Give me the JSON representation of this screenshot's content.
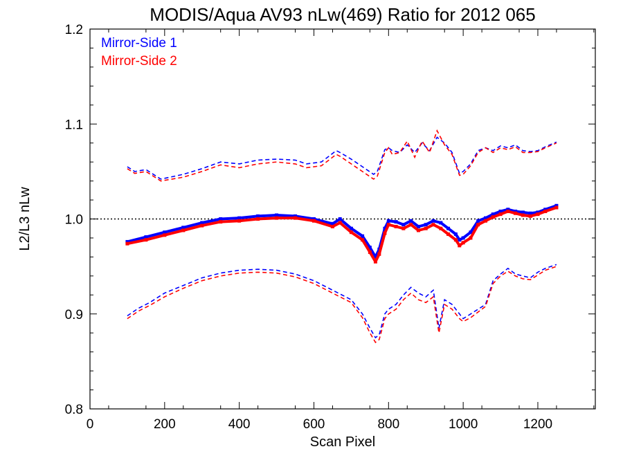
{
  "chart_data": {
    "type": "line",
    "title": "MODIS/Aqua AV93 nLw(469) Ratio for 2012 065",
    "xlabel": "Scan Pixel",
    "ylabel": "L2/L3 nLw",
    "xlim": [
      0,
      1354
    ],
    "ylim": [
      0.8,
      1.2
    ],
    "x_ticks": [
      0,
      200,
      400,
      600,
      800,
      1000,
      1200
    ],
    "y_ticks": [
      0.8,
      0.9,
      1.0,
      1.1,
      1.2
    ],
    "x_tick_labels": [
      "0",
      "200",
      "400",
      "600",
      "800",
      "1000",
      "1200"
    ],
    "y_tick_labels": [
      "0.8",
      "0.9",
      "1.0",
      "1.1",
      "1.2"
    ],
    "reference_line": 1.0,
    "legend_position": "top-left",
    "colors": {
      "ms1": "#0000ff",
      "ms2": "#ff0000"
    },
    "series": [
      {
        "name": "Mirror-Side 1",
        "color": "#0000ff",
        "mean": {
          "x": [
            100,
            150,
            200,
            250,
            300,
            350,
            400,
            450,
            500,
            550,
            600,
            650,
            670,
            700,
            730,
            750,
            765,
            775,
            790,
            800,
            820,
            840,
            860,
            880,
            900,
            920,
            940,
            960,
            980,
            990,
            1000,
            1020,
            1040,
            1060,
            1080,
            1100,
            1120,
            1140,
            1160,
            1180,
            1200,
            1220,
            1250
          ],
          "y": [
            0.976,
            0.981,
            0.986,
            0.991,
            0.996,
            1.0,
            1.001,
            1.003,
            1.004,
            1.003,
            1.0,
            0.995,
            1.0,
            0.99,
            0.982,
            0.97,
            0.96,
            0.968,
            0.99,
            0.998,
            0.997,
            0.994,
            0.998,
            0.992,
            0.994,
            0.998,
            0.996,
            0.99,
            0.984,
            0.978,
            0.98,
            0.986,
            0.998,
            1.001,
            1.005,
            1.008,
            1.01,
            1.008,
            1.007,
            1.006,
            1.007,
            1.01,
            1.014
          ]
        },
        "upper": {
          "x": [
            100,
            120,
            150,
            190,
            250,
            300,
            350,
            400,
            450,
            500,
            550,
            580,
            620,
            660,
            670,
            700,
            730,
            760,
            770,
            790,
            800,
            810,
            830,
            850,
            870,
            890,
            910,
            930,
            950,
            970,
            990,
            1000,
            1020,
            1040,
            1060,
            1080,
            1100,
            1120,
            1140,
            1160,
            1180,
            1200,
            1220,
            1250
          ],
          "y": [
            1.055,
            1.05,
            1.052,
            1.042,
            1.047,
            1.053,
            1.06,
            1.058,
            1.062,
            1.063,
            1.062,
            1.058,
            1.06,
            1.072,
            1.07,
            1.063,
            1.055,
            1.047,
            1.05,
            1.073,
            1.075,
            1.072,
            1.07,
            1.078,
            1.07,
            1.08,
            1.072,
            1.086,
            1.08,
            1.07,
            1.048,
            1.05,
            1.058,
            1.072,
            1.075,
            1.072,
            1.077,
            1.075,
            1.078,
            1.072,
            1.071,
            1.072,
            1.076,
            1.081
          ]
        },
        "lower": {
          "x": [
            100,
            130,
            160,
            200,
            250,
            300,
            350,
            400,
            450,
            500,
            550,
            600,
            650,
            700,
            730,
            750,
            765,
            775,
            790,
            800,
            820,
            840,
            860,
            880,
            900,
            920,
            935,
            950,
            970,
            990,
            1000,
            1020,
            1040,
            1060,
            1080,
            1100,
            1120,
            1140,
            1160,
            1180,
            1200,
            1220,
            1250
          ],
          "y": [
            0.898,
            0.906,
            0.912,
            0.922,
            0.93,
            0.938,
            0.943,
            0.946,
            0.947,
            0.946,
            0.942,
            0.935,
            0.925,
            0.915,
            0.9,
            0.885,
            0.875,
            0.878,
            0.9,
            0.905,
            0.91,
            0.92,
            0.928,
            0.922,
            0.918,
            0.925,
            0.885,
            0.915,
            0.91,
            0.9,
            0.895,
            0.9,
            0.905,
            0.91,
            0.935,
            0.942,
            0.948,
            0.942,
            0.94,
            0.938,
            0.944,
            0.948,
            0.952
          ]
        }
      },
      {
        "name": "Mirror-Side 2",
        "color": "#ff0000",
        "mean": {
          "x": [
            100,
            150,
            200,
            250,
            300,
            350,
            400,
            450,
            500,
            550,
            600,
            650,
            670,
            700,
            730,
            750,
            765,
            775,
            790,
            800,
            820,
            840,
            860,
            880,
            900,
            920,
            940,
            960,
            980,
            990,
            1000,
            1020,
            1040,
            1060,
            1080,
            1100,
            1120,
            1140,
            1160,
            1180,
            1200,
            1220,
            1250
          ],
          "y": [
            0.974,
            0.978,
            0.983,
            0.988,
            0.993,
            0.997,
            0.998,
            1.0,
            1.001,
            1.001,
            0.998,
            0.992,
            0.996,
            0.986,
            0.978,
            0.965,
            0.955,
            0.963,
            0.985,
            0.994,
            0.992,
            0.99,
            0.994,
            0.988,
            0.99,
            0.994,
            0.99,
            0.984,
            0.978,
            0.972,
            0.975,
            0.98,
            0.994,
            0.998,
            1.002,
            1.005,
            1.008,
            1.006,
            1.004,
            1.003,
            1.005,
            1.008,
            1.012
          ]
        },
        "upper": {
          "x": [
            100,
            120,
            150,
            190,
            250,
            300,
            350,
            400,
            450,
            500,
            550,
            580,
            620,
            660,
            670,
            700,
            730,
            760,
            770,
            790,
            800,
            810,
            830,
            850,
            870,
            890,
            910,
            930,
            950,
            970,
            990,
            1000,
            1020,
            1040,
            1060,
            1080,
            1100,
            1120,
            1140,
            1160,
            1180,
            1200,
            1220,
            1250
          ],
          "y": [
            1.053,
            1.048,
            1.05,
            1.04,
            1.044,
            1.05,
            1.057,
            1.054,
            1.058,
            1.06,
            1.058,
            1.054,
            1.056,
            1.068,
            1.066,
            1.058,
            1.05,
            1.042,
            1.045,
            1.07,
            1.075,
            1.068,
            1.07,
            1.082,
            1.065,
            1.082,
            1.07,
            1.093,
            1.078,
            1.068,
            1.046,
            1.047,
            1.056,
            1.07,
            1.075,
            1.07,
            1.075,
            1.073,
            1.076,
            1.07,
            1.07,
            1.071,
            1.075,
            1.08
          ]
        },
        "lower": {
          "x": [
            100,
            130,
            160,
            200,
            250,
            300,
            350,
            400,
            450,
            500,
            550,
            600,
            650,
            700,
            730,
            750,
            765,
            775,
            790,
            800,
            820,
            840,
            860,
            880,
            900,
            920,
            935,
            950,
            970,
            990,
            1000,
            1020,
            1040,
            1060,
            1080,
            1100,
            1120,
            1140,
            1160,
            1180,
            1200,
            1220,
            1250
          ],
          "y": [
            0.895,
            0.903,
            0.909,
            0.918,
            0.927,
            0.935,
            0.94,
            0.943,
            0.944,
            0.943,
            0.939,
            0.932,
            0.922,
            0.912,
            0.896,
            0.88,
            0.87,
            0.873,
            0.895,
            0.9,
            0.905,
            0.915,
            0.922,
            0.915,
            0.912,
            0.918,
            0.88,
            0.91,
            0.905,
            0.895,
            0.892,
            0.896,
            0.902,
            0.908,
            0.932,
            0.94,
            0.945,
            0.94,
            0.937,
            0.936,
            0.941,
            0.946,
            0.95
          ]
        }
      }
    ]
  }
}
